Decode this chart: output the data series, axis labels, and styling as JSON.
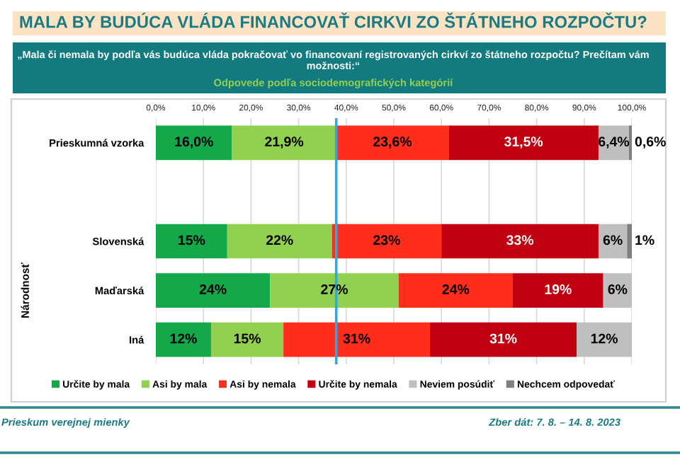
{
  "chart_data": {
    "type": "bar",
    "orientation": "horizontal",
    "stacked": true,
    "title": "MALA BY BUDÚCA VLÁDA FINANCOVAŤ CIRKVI ZO ŠTÁTNEHO ROZPOČTU?",
    "subtitle": "„Mala či nemala by podľa vás budúca vláda pokračovať vo financovaní registrovaných cirkví zo štátneho rozpočtu? Prečítam vám možnosti:“",
    "ylabel": "Národnosť",
    "annotations": [
      "Odpovede podľa sociodemografických kategórií",
      "Prieskum verejnej mienky",
      "Zber dát: 7. 8. – 14. 8. 2023"
    ],
    "categories": [
      "Prieskumná vzorka",
      null,
      "Slovenská",
      "Maďarská",
      "Iná"
    ],
    "series": [
      {
        "name": "Určite by mala",
        "color": "#13a84a",
        "values": [
          16.0,
          null,
          15,
          24,
          11.6
        ],
        "value_labels": [
          "16,0%",
          null,
          "15%",
          "24%",
          "12%"
        ]
      },
      {
        "name": "Asi by mala",
        "color": "#92d050",
        "values": [
          21.9,
          null,
          22,
          27,
          15.2
        ],
        "value_labels": [
          "21,9%",
          null,
          "22%",
          "27%",
          "15%"
        ]
      },
      {
        "name": "Asi by nemala",
        "color": "#fe2d1c",
        "values": [
          23.6,
          null,
          23,
          24,
          30.8
        ],
        "value_labels": [
          "23,6%",
          null,
          "23%",
          "24%",
          "31%"
        ]
      },
      {
        "name": "Určite by nemala",
        "color": "#c00010",
        "values": [
          31.5,
          null,
          33,
          19,
          30.8
        ],
        "value_labels": [
          "31,5%",
          null,
          "33%",
          "19%",
          "31%"
        ]
      },
      {
        "name": "Neviem posúdiť",
        "color": "#bfbfbf",
        "values": [
          6.4,
          null,
          6,
          6,
          11.6
        ],
        "value_labels": [
          "6,4%",
          null,
          "6%",
          "6%",
          "12%"
        ]
      },
      {
        "name": "Nechcem odpovedať",
        "color": "#7f7f7f",
        "values": [
          0.6,
          null,
          1,
          null,
          null
        ],
        "value_labels": [
          "0,6%",
          null,
          "1%",
          null,
          null
        ]
      }
    ],
    "xlim": [
      0,
      100
    ],
    "xticks": [
      {
        "value": 0,
        "label": "0,0%"
      },
      {
        "value": 10,
        "label": "10,0%"
      },
      {
        "value": 20,
        "label": "20,0%"
      },
      {
        "value": 30,
        "label": "30,0%"
      },
      {
        "value": 40,
        "label": "40,0%"
      },
      {
        "value": 50,
        "label": "50,0%"
      },
      {
        "value": 60,
        "label": "60,0%"
      },
      {
        "value": 70,
        "label": "70,0%"
      },
      {
        "value": 80,
        "label": "80,0%"
      },
      {
        "value": 90,
        "label": "90,0%"
      },
      {
        "value": 100,
        "label": "100,0%"
      }
    ],
    "grid": "x",
    "legend": "bottom",
    "ref_lines": [
      {
        "axis": "x",
        "value": 37.9,
        "color": "#29abe2"
      }
    ]
  }
}
